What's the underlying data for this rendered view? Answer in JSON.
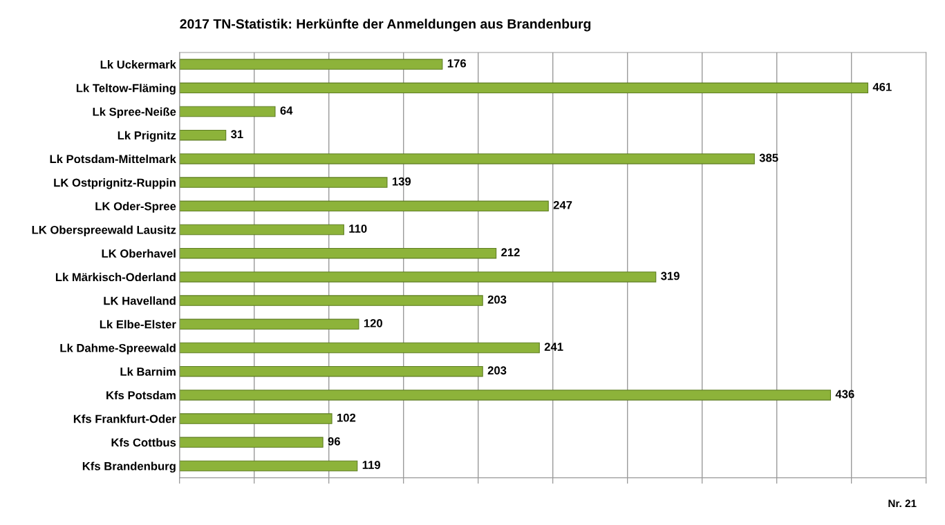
{
  "chart_data": {
    "type": "bar",
    "orientation": "horizontal",
    "title": "2017 TN-Statistik: Herkünfte der Anmeldungen aus Brandenburg",
    "categories": [
      "Lk Uckermark",
      "Lk Teltow-Fläming",
      "Lk Spree-Neiße",
      "Lk Prignitz",
      "Lk Potsdam-Mittelmark",
      "LK Ostprignitz-Ruppin",
      "LK Oder-Spree",
      "LK Oberspreewald Lausitz",
      "LK Oberhavel",
      "Lk Märkisch-Oderland",
      "LK Havelland",
      "Lk Elbe-Elster",
      "Lk Dahme-Spreewald",
      "Lk Barnim",
      "Kfs Potsdam",
      "Kfs Frankfurt-Oder",
      "Kfs Cottbus",
      "Kfs Brandenburg"
    ],
    "values": [
      176,
      461,
      64,
      31,
      385,
      139,
      247,
      110,
      212,
      319,
      203,
      120,
      241,
      203,
      436,
      102,
      96,
      119
    ],
    "color": "#8db33a",
    "data_labels": true,
    "xlim": [
      0,
      500
    ],
    "xticks": [
      {
        "value": 0,
        "label": null
      },
      {
        "value": 50,
        "label": null
      },
      {
        "value": 100,
        "label": null
      },
      {
        "value": 150,
        "label": null
      },
      {
        "value": 200,
        "label": null
      },
      {
        "value": 250,
        "label": null
      },
      {
        "value": 300,
        "label": null
      },
      {
        "value": 350,
        "label": null
      },
      {
        "value": 400,
        "label": null
      },
      {
        "value": 450,
        "label": null
      },
      {
        "value": 500,
        "label": null
      }
    ],
    "tick_labels": "y",
    "grid": "x",
    "annotations": [
      "Nr. 21"
    ]
  }
}
